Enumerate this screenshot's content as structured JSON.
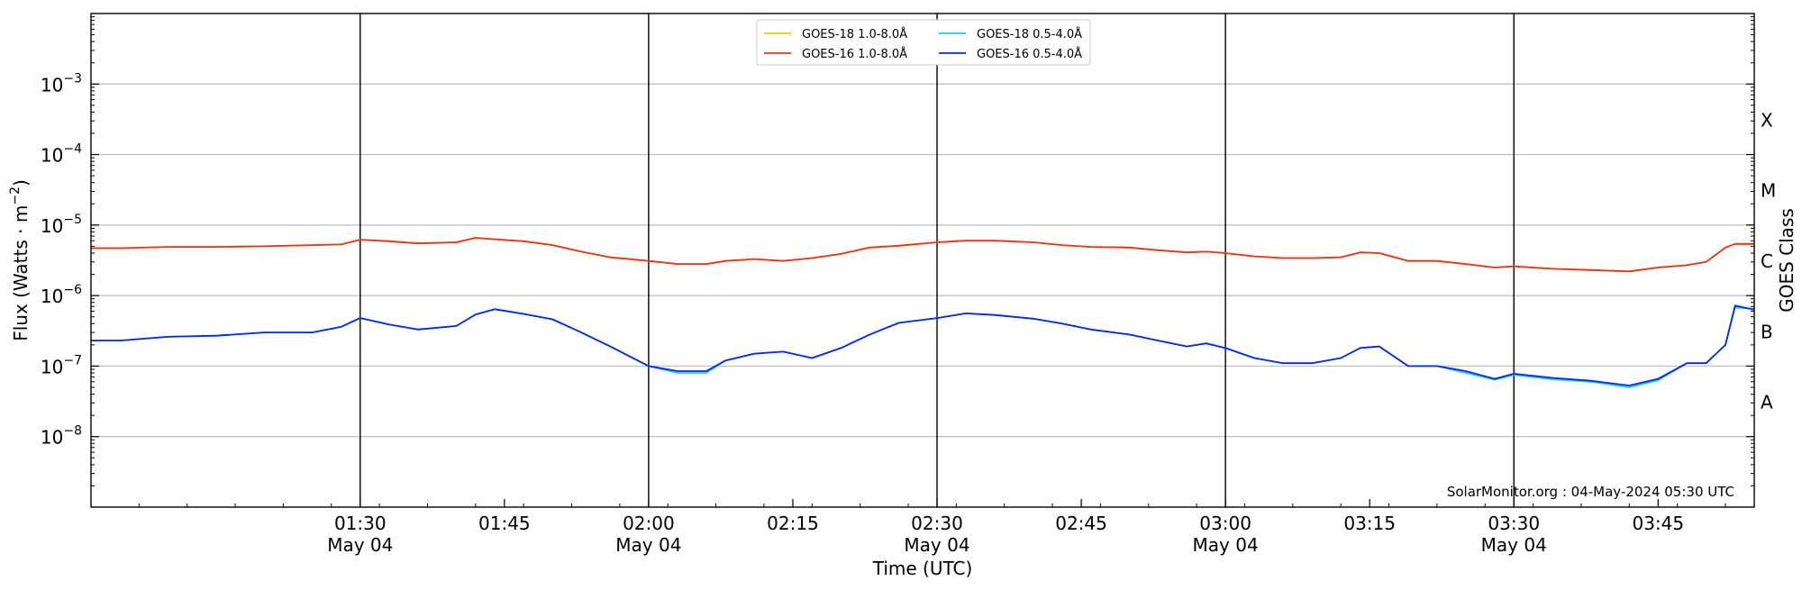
{
  "chart_data": {
    "type": "line",
    "xlabel": "Time (UTC)",
    "ylabel_main": "Flux (Watts · m",
    "ylabel_exp": "−2",
    "ylabel_close": ")",
    "y2label": "GOES Class",
    "yscale": "log",
    "xlim": [
      "01:02",
      "03:55"
    ],
    "ylim": [
      1e-09,
      0.01
    ],
    "grid": "horizontal",
    "legend_placement": "top-center",
    "x_ticks": [
      {
        "time": "01:30",
        "label": "01:30",
        "sublabel": "May 04",
        "vline": true
      },
      {
        "time": "01:45",
        "label": "01:45",
        "sublabel": "",
        "vline": false
      },
      {
        "time": "02:00",
        "label": "02:00",
        "sublabel": "May 04",
        "vline": true
      },
      {
        "time": "02:15",
        "label": "02:15",
        "sublabel": "",
        "vline": false
      },
      {
        "time": "02:30",
        "label": "02:30",
        "sublabel": "May 04",
        "vline": true
      },
      {
        "time": "02:45",
        "label": "02:45",
        "sublabel": "",
        "vline": false
      },
      {
        "time": "03:00",
        "label": "03:00",
        "sublabel": "May 04",
        "vline": true
      },
      {
        "time": "03:15",
        "label": "03:15",
        "sublabel": "",
        "vline": false
      },
      {
        "time": "03:30",
        "label": "03:30",
        "sublabel": "May 04",
        "vline": true
      },
      {
        "time": "03:45",
        "label": "03:45",
        "sublabel": "",
        "vline": false
      }
    ],
    "y_ticks": [
      {
        "exp": -8,
        "base": "10",
        "sup": "−8"
      },
      {
        "exp": -7,
        "base": "10",
        "sup": "−7"
      },
      {
        "exp": -6,
        "base": "10",
        "sup": "−6"
      },
      {
        "exp": -5,
        "base": "10",
        "sup": "−5"
      },
      {
        "exp": -4,
        "base": "10",
        "sup": "−4"
      },
      {
        "exp": -3,
        "base": "10",
        "sup": "−3"
      }
    ],
    "goes_classes": [
      {
        "label": "A",
        "exp": -7.5
      },
      {
        "label": "B",
        "exp": -6.5
      },
      {
        "label": "C",
        "exp": -5.5
      },
      {
        "label": "M",
        "exp": -4.5
      },
      {
        "label": "X",
        "exp": -3.5
      }
    ],
    "x": [
      "01:02",
      "01:05",
      "01:10",
      "01:15",
      "01:20",
      "01:25",
      "01:28",
      "01:30",
      "01:33",
      "01:36",
      "01:40",
      "01:42",
      "01:44",
      "01:47",
      "01:50",
      "01:53",
      "01:56",
      "02:00",
      "02:03",
      "02:06",
      "02:08",
      "02:11",
      "02:14",
      "02:17",
      "02:20",
      "02:23",
      "02:26",
      "02:30",
      "02:33",
      "02:36",
      "02:40",
      "02:43",
      "02:46",
      "02:50",
      "02:53",
      "02:56",
      "02:58",
      "03:00",
      "03:03",
      "03:06",
      "03:09",
      "03:12",
      "03:14",
      "03:16",
      "03:19",
      "03:22",
      "03:25",
      "03:28",
      "03:30",
      "03:34",
      "03:38",
      "03:42",
      "03:45",
      "03:48",
      "03:50",
      "03:52",
      "03:53",
      "03:55"
    ],
    "series": [
      {
        "name": "GOES-18 1.0-8.0Å",
        "color": "#f5c400",
        "values": [
          4.7e-06,
          4.7e-06,
          4.9e-06,
          4.9e-06,
          5e-06,
          5.2e-06,
          5.3e-06,
          6.2e-06,
          5.9e-06,
          5.5e-06,
          5.7e-06,
          6.6e-06,
          6.3e-06,
          5.9e-06,
          5.2e-06,
          4.2e-06,
          3.5e-06,
          3.1e-06,
          2.8e-06,
          2.8e-06,
          3.1e-06,
          3.3e-06,
          3.1e-06,
          3.4e-06,
          3.9e-06,
          4.8e-06,
          5.1e-06,
          5.7e-06,
          6e-06,
          6e-06,
          5.7e-06,
          5.2e-06,
          4.9e-06,
          4.8e-06,
          4.4e-06,
          4.1e-06,
          4.2e-06,
          4e-06,
          3.6e-06,
          3.4e-06,
          3.4e-06,
          3.5e-06,
          4.1e-06,
          4e-06,
          3.1e-06,
          3.1e-06,
          2.8e-06,
          2.5e-06,
          2.6e-06,
          2.4e-06,
          2.3e-06,
          2.2e-06,
          2.5e-06,
          2.7e-06,
          3e-06,
          4.8e-06,
          5.4e-06,
          5.4e-06
        ]
      },
      {
        "name": "GOES-16 1.0-8.0Å",
        "color": "#e8321e",
        "values": [
          4.7e-06,
          4.7e-06,
          4.9e-06,
          4.9e-06,
          5e-06,
          5.2e-06,
          5.3e-06,
          6.2e-06,
          5.9e-06,
          5.5e-06,
          5.7e-06,
          6.6e-06,
          6.3e-06,
          5.9e-06,
          5.2e-06,
          4.2e-06,
          3.5e-06,
          3.1e-06,
          2.8e-06,
          2.8e-06,
          3.1e-06,
          3.3e-06,
          3.1e-06,
          3.4e-06,
          3.9e-06,
          4.8e-06,
          5.1e-06,
          5.7e-06,
          6e-06,
          6e-06,
          5.7e-06,
          5.2e-06,
          4.9e-06,
          4.8e-06,
          4.4e-06,
          4.1e-06,
          4.2e-06,
          4e-06,
          3.6e-06,
          3.4e-06,
          3.4e-06,
          3.5e-06,
          4.1e-06,
          4e-06,
          3.1e-06,
          3.1e-06,
          2.8e-06,
          2.5e-06,
          2.6e-06,
          2.4e-06,
          2.3e-06,
          2.2e-06,
          2.5e-06,
          2.7e-06,
          3e-06,
          4.8e-06,
          5.4e-06,
          5.4e-06
        ]
      },
      {
        "name": "GOES-18 0.5-4.0Å",
        "color": "#1ecbf0",
        "values": [
          2.3e-07,
          2.3e-07,
          2.6e-07,
          2.7e-07,
          3e-07,
          3e-07,
          3.6e-07,
          4.8e-07,
          3.9e-07,
          3.3e-07,
          3.7e-07,
          5.4e-07,
          6.4e-07,
          5.5e-07,
          4.6e-07,
          3e-07,
          1.9e-07,
          1e-07,
          8e-08,
          8e-08,
          1.2e-07,
          1.5e-07,
          1.6e-07,
          1.3e-07,
          1.8e-07,
          2.8e-07,
          4.1e-07,
          4.8e-07,
          5.6e-07,
          5.3e-07,
          4.7e-07,
          4e-07,
          3.3e-07,
          2.8e-07,
          2.3e-07,
          1.9e-07,
          2.1e-07,
          1.8e-07,
          1.3e-07,
          1.1e-07,
          1.1e-07,
          1.3e-07,
          1.8e-07,
          1.9e-07,
          1e-07,
          1e-07,
          8e-08,
          6.4e-08,
          7.5e-08,
          6.5e-08,
          6e-08,
          5e-08,
          6.3e-08,
          1.1e-07,
          1.1e-07,
          2e-07,
          6.8e-07,
          6.5e-07
        ]
      },
      {
        "name": "GOES-16 0.5-4.0Å",
        "color": "#0a28e6",
        "values": [
          2.3e-07,
          2.3e-07,
          2.6e-07,
          2.7e-07,
          3e-07,
          3e-07,
          3.6e-07,
          4.8e-07,
          3.9e-07,
          3.3e-07,
          3.7e-07,
          5.4e-07,
          6.4e-07,
          5.5e-07,
          4.6e-07,
          3e-07,
          1.9e-07,
          1e-07,
          8.5e-08,
          8.5e-08,
          1.2e-07,
          1.5e-07,
          1.6e-07,
          1.3e-07,
          1.8e-07,
          2.8e-07,
          4.1e-07,
          4.8e-07,
          5.6e-07,
          5.3e-07,
          4.7e-07,
          4e-07,
          3.3e-07,
          2.8e-07,
          2.3e-07,
          1.9e-07,
          2.1e-07,
          1.8e-07,
          1.3e-07,
          1.1e-07,
          1.1e-07,
          1.3e-07,
          1.8e-07,
          1.9e-07,
          1e-07,
          1e-07,
          8.5e-08,
          6.6e-08,
          7.8e-08,
          6.8e-08,
          6.2e-08,
          5.3e-08,
          6.6e-08,
          1.1e-07,
          1.1e-07,
          2e-07,
          7.2e-07,
          6.3e-07
        ]
      }
    ],
    "annotation": "SolarMonitor.org : 04-May-2024 05:30 UTC"
  }
}
